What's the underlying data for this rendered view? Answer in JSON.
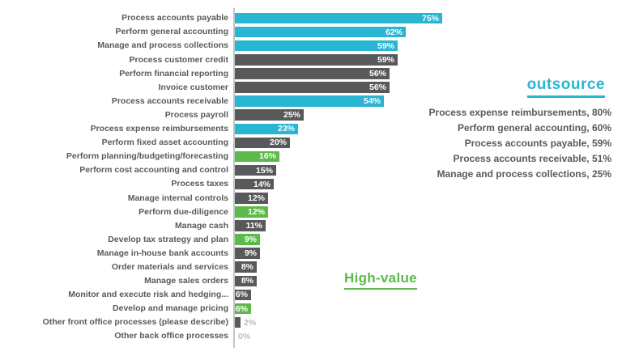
{
  "chart_data": {
    "type": "bar",
    "orientation": "horizontal",
    "title": "",
    "xlabel": "",
    "ylabel": "",
    "xlim": [
      0,
      80
    ],
    "grid": false,
    "legend": false,
    "categories": [
      "Process accounts payable",
      "Perform general accounting",
      "Manage and process collections",
      "Process customer credit",
      "Perform financial reporting",
      "Invoice customer",
      "Process accounts receivable",
      "Process payroll",
      "Process expense reimbursements",
      "Perform fixed asset accounting",
      "Perform planning/budgeting/forecasting",
      "Perform cost accounting and control",
      "Process taxes",
      "Manage internal controls",
      "Perform due-diligence",
      "Manage cash",
      "Develop tax strategy and plan",
      "Manage in-house bank accounts",
      "Order materials and services",
      "Manage sales orders",
      "Monitor and execute risk and hedging...",
      "Develop and manage pricing",
      "Other front office processes (please describe)",
      "Other back office processes"
    ],
    "values": [
      75,
      62,
      59,
      59,
      56,
      56,
      54,
      25,
      23,
      20,
      16,
      15,
      14,
      12,
      12,
      11,
      9,
      9,
      8,
      8,
      6,
      6,
      2,
      0
    ],
    "value_labels": [
      "75%",
      "62%",
      "59%",
      "59%",
      "56%",
      "56%",
      "54%",
      "25%",
      "23%",
      "20%",
      "16%",
      "15%",
      "14%",
      "12%",
      "12%",
      "11%",
      "9%",
      "9%",
      "8%",
      "8%",
      "6%",
      "6%",
      "2%",
      "0%"
    ],
    "bar_colors": [
      "teal",
      "teal",
      "teal",
      "gray",
      "gray",
      "gray",
      "teal",
      "gray",
      "teal",
      "gray",
      "green",
      "gray",
      "gray",
      "gray",
      "green",
      "gray",
      "green",
      "gray",
      "gray",
      "gray",
      "gray",
      "green",
      "gray",
      "gray"
    ],
    "colors": {
      "teal": "#29b6d2",
      "gray": "#58595b",
      "green": "#5bba48",
      "label_text": "#58595b",
      "axis": "#c2c4c6"
    }
  },
  "annotations": {
    "outsource": {
      "title": "outsource",
      "items": [
        "Process expense reimbursements, 80%",
        "Perform general accounting, 60%",
        "Process accounts payable, 59%",
        "Process accounts receivable, 51%",
        "Manage and process collections, 25%"
      ]
    },
    "high_value": {
      "label": "High-value"
    }
  }
}
